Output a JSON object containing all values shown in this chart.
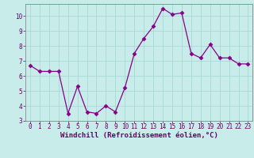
{
  "x": [
    0,
    1,
    2,
    3,
    4,
    5,
    6,
    7,
    8,
    9,
    10,
    11,
    12,
    13,
    14,
    15,
    16,
    17,
    18,
    19,
    20,
    21,
    22,
    23
  ],
  "y": [
    6.7,
    6.3,
    6.3,
    6.3,
    3.5,
    5.3,
    3.6,
    3.5,
    4.0,
    3.6,
    5.2,
    7.5,
    8.5,
    9.3,
    10.5,
    10.1,
    10.2,
    7.5,
    7.2,
    8.1,
    7.2,
    7.2,
    6.8,
    6.8
  ],
  "line_color": "#880088",
  "marker": "D",
  "marker_size": 2.5,
  "linewidth": 0.9,
  "background_color": "#c8ecea",
  "grid_color": "#a8d8d4",
  "xlabel": "Windchill (Refroidissement éolien,°C)",
  "tick_fontsize": 5.5,
  "xlabel_fontsize": 6.5,
  "xlim": [
    -0.5,
    23.5
  ],
  "ylim": [
    3.0,
    10.8
  ],
  "yticks": [
    3,
    4,
    5,
    6,
    7,
    8,
    9,
    10
  ],
  "xticks": [
    0,
    1,
    2,
    3,
    4,
    5,
    6,
    7,
    8,
    9,
    10,
    11,
    12,
    13,
    14,
    15,
    16,
    17,
    18,
    19,
    20,
    21,
    22,
    23
  ],
  "spine_color": "#888888",
  "tick_color": "#660066",
  "label_color": "#660066"
}
